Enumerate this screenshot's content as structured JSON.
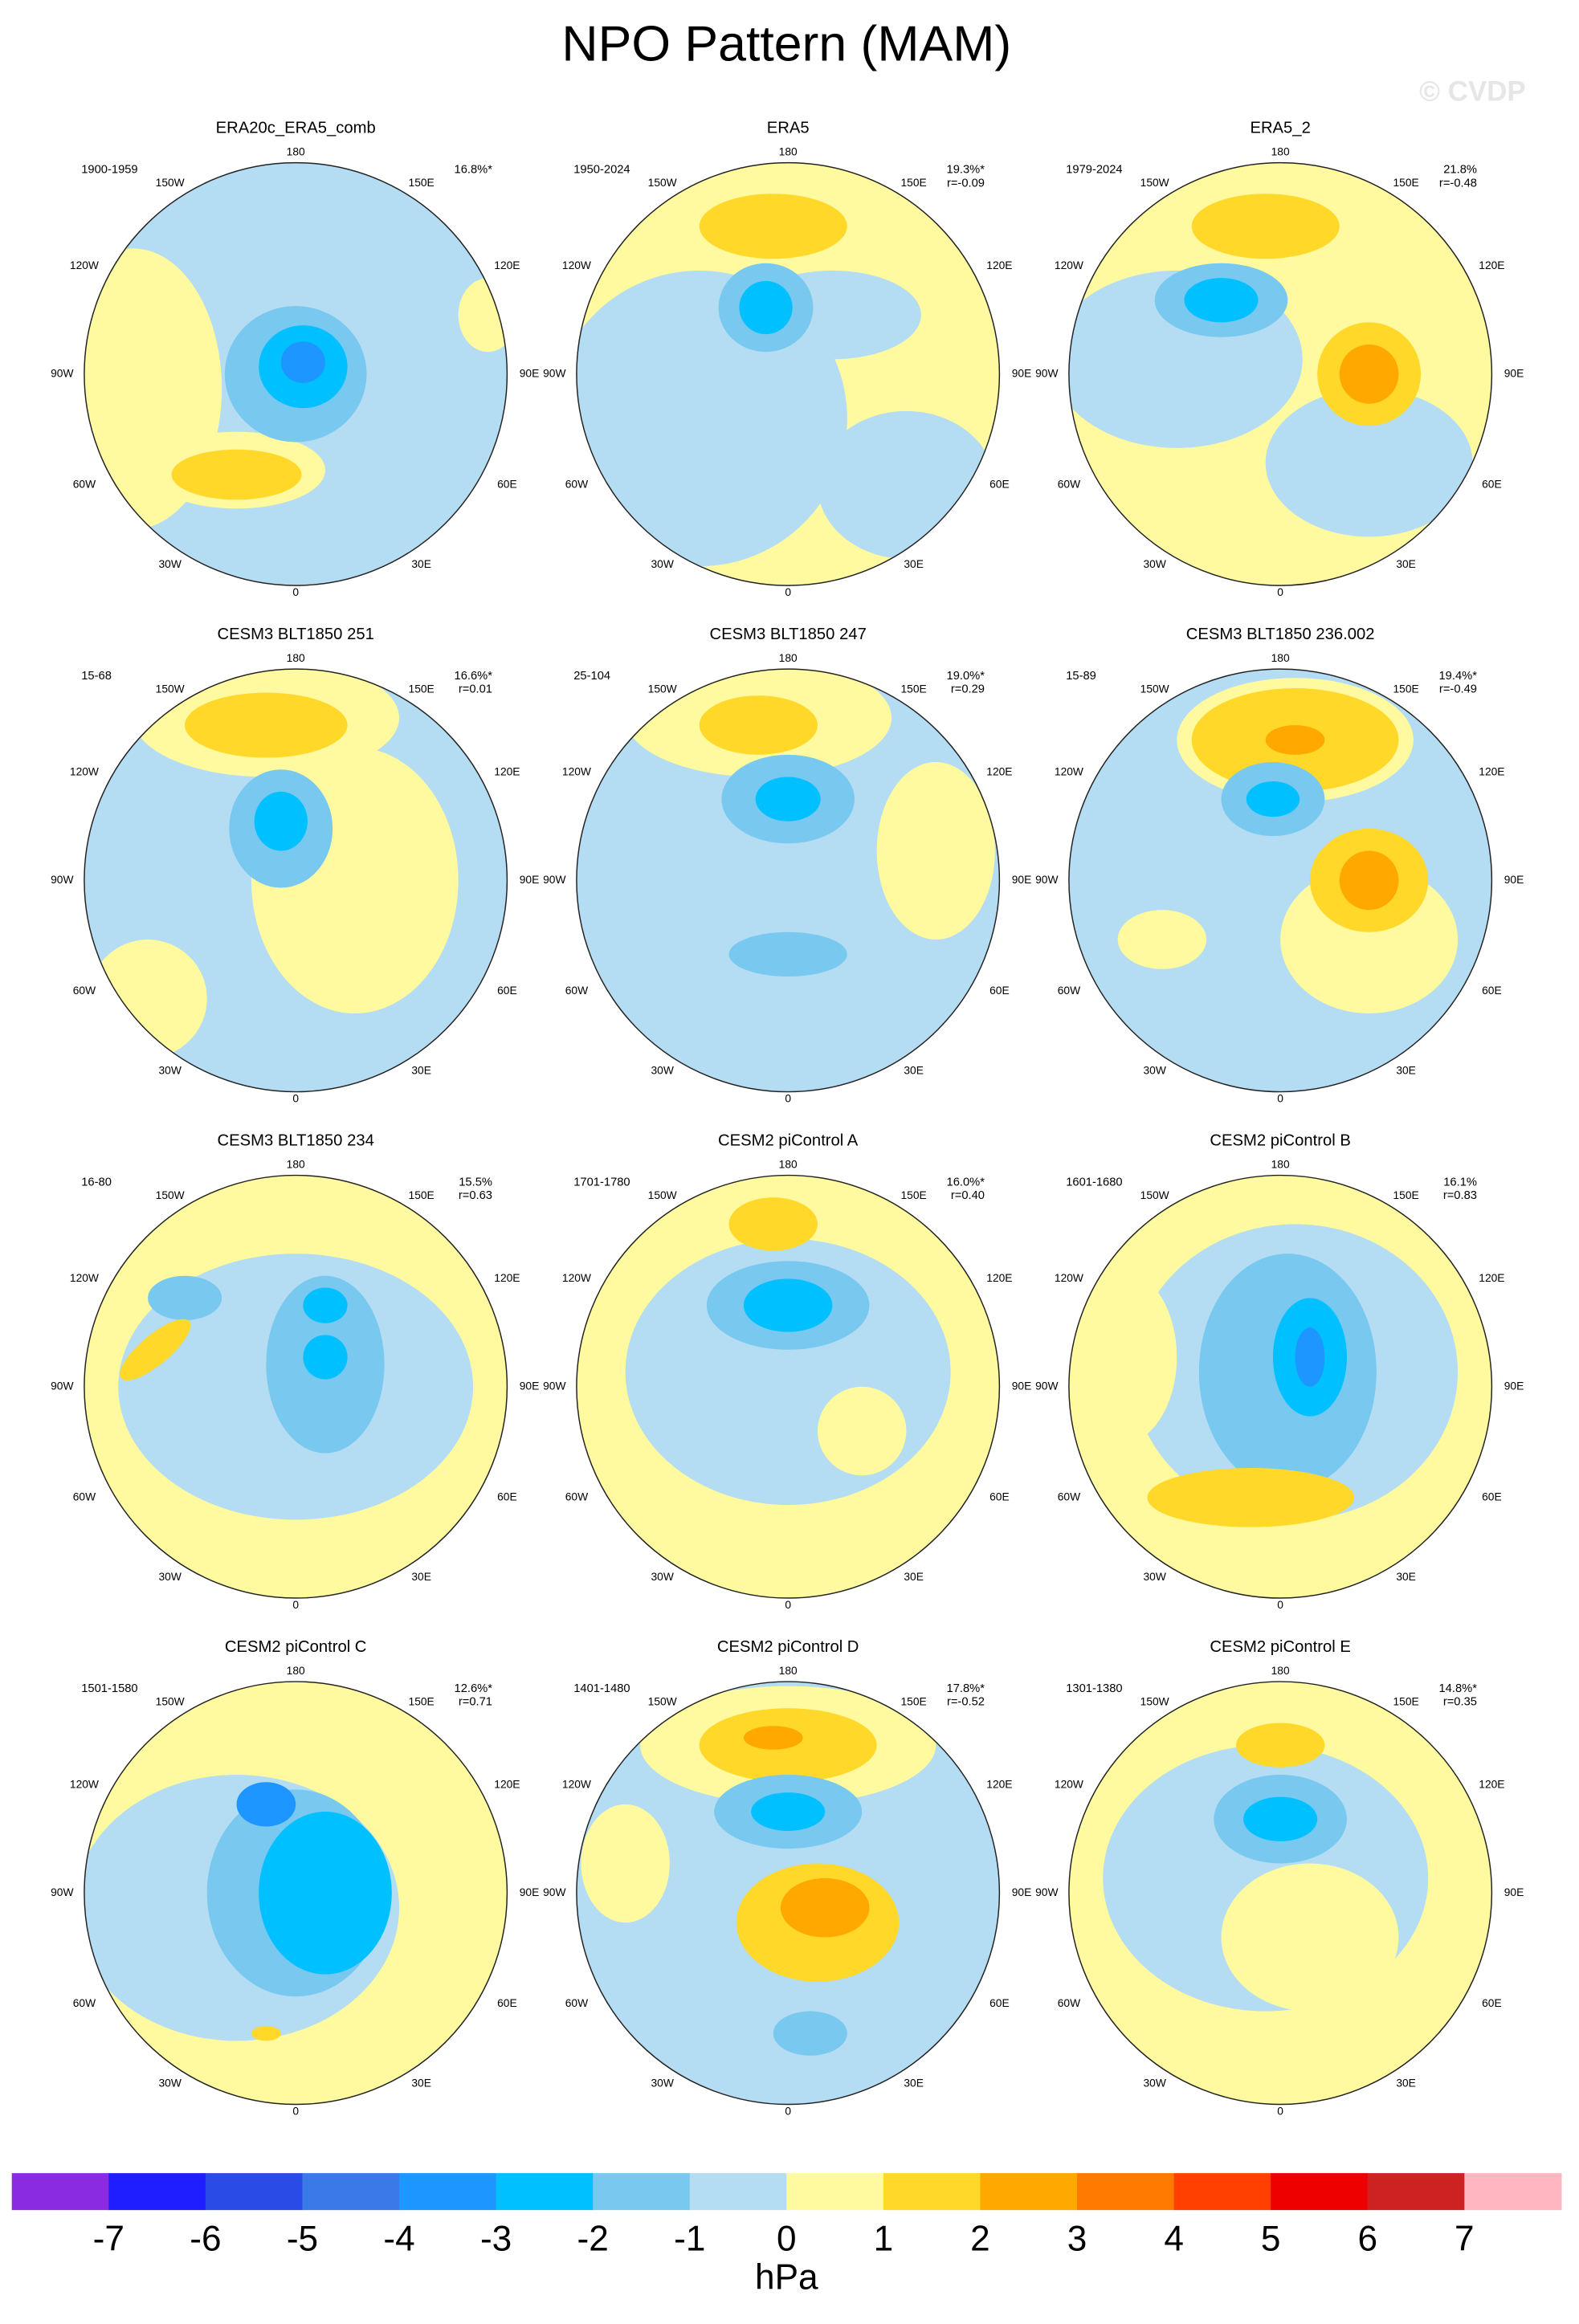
{
  "title": "NPO Pattern (MAM)",
  "watermark": "© CVDP",
  "lon_labels": [
    "180",
    "150W",
    "150E",
    "120W",
    "120E",
    "90W",
    "90E",
    "60W",
    "60E",
    "30W",
    "30E",
    "0"
  ],
  "panels": [
    {
      "title": "ERA20c_ERA5_comb",
      "period": "1900-1959",
      "pct": "16.8%*"
    },
    {
      "title": "ERA5",
      "period": "1950-2024",
      "pct": "19.3%*",
      "r": "r=-0.09"
    },
    {
      "title": "ERA5_2",
      "period": "1979-2024",
      "pct": "21.8%",
      "r": "r=-0.48"
    },
    {
      "title": "CESM3 BLT1850 251",
      "period": "15-68",
      "pct": "16.6%*",
      "r": "r=0.01"
    },
    {
      "title": "CESM3 BLT1850 247",
      "period": "25-104",
      "pct": "19.0%*",
      "r": "r=0.29"
    },
    {
      "title": "CESM3 BLT1850 236.002",
      "period": "15-89",
      "pct": "19.4%*",
      "r": "r=-0.49"
    },
    {
      "title": "CESM3 BLT1850 234",
      "period": "16-80",
      "pct": "15.5%",
      "r": "r=0.63"
    },
    {
      "title": "CESM2 piControl A",
      "period": "1701-1780",
      "pct": "16.0%*",
      "r": "r=0.40"
    },
    {
      "title": "CESM2 piControl B",
      "period": "1601-1680",
      "pct": "16.1%",
      "r": "r=0.83"
    },
    {
      "title": "CESM2 piControl C",
      "period": "1501-1580",
      "pct": "12.6%*",
      "r": "r=0.71"
    },
    {
      "title": "CESM2 piControl D",
      "period": "1401-1480",
      "pct": "17.8%*",
      "r": "r=-0.52"
    },
    {
      "title": "CESM2 piControl E",
      "period": "1301-1380",
      "pct": "14.8%*",
      "r": "r=0.35"
    }
  ],
  "colorbar": {
    "colors": [
      "#8a2be2",
      "#1e1eff",
      "#2a4be6",
      "#3a7ae8",
      "#1e96ff",
      "#00c0ff",
      "#78c8f0",
      "#b4dcf2",
      "#fffaa0",
      "#ffd82a",
      "#ffa800",
      "#ff7a00",
      "#ff4000",
      "#ee0000",
      "#cc2222",
      "#ffb6c1"
    ],
    "ticks": [
      -7,
      -6,
      -5,
      -4,
      -3,
      -2,
      -1,
      0,
      1,
      2,
      3,
      4,
      5,
      6,
      7
    ],
    "unit": "hPa"
  }
}
